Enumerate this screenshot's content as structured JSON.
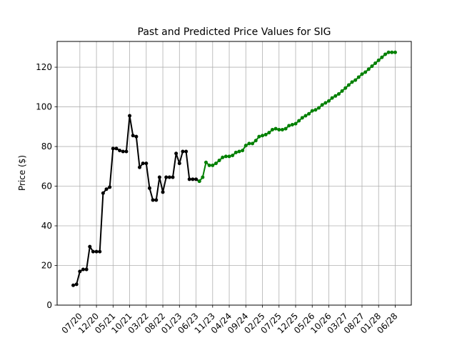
{
  "chart_data": {
    "type": "line",
    "title": "Past and Predicted Price Values for SIG",
    "xlabel": "",
    "ylabel": "Price ($)",
    "ylim": [
      0,
      133
    ],
    "grid": true,
    "x_ticks": [
      "07/20",
      "12/20",
      "05/21",
      "10/21",
      "03/22",
      "08/22",
      "01/23",
      "06/23",
      "11/23",
      "04/24",
      "09/24",
      "02/25",
      "07/25",
      "12/25",
      "05/26",
      "10/26",
      "03/27",
      "08/27",
      "01/28",
      "06/28"
    ],
    "y_ticks": [
      0,
      20,
      40,
      60,
      80,
      100,
      120
    ],
    "series": [
      {
        "color": "#000000",
        "x": [
          "05/20",
          "06/20",
          "07/20",
          "08/20",
          "09/20",
          "10/20",
          "11/20",
          "12/20",
          "01/21",
          "02/21",
          "03/21",
          "04/21",
          "05/21",
          "06/21",
          "07/21",
          "08/21",
          "09/21",
          "10/21",
          "11/21",
          "12/21",
          "01/22",
          "02/22",
          "03/22",
          "04/22",
          "05/22",
          "06/22",
          "07/22",
          "08/22",
          "09/22",
          "10/22",
          "11/22",
          "12/22",
          "01/23",
          "02/23",
          "03/23",
          "04/23",
          "05/23",
          "06/23",
          "07/23"
        ],
        "values": [
          10,
          10.5,
          17,
          18,
          18,
          29.5,
          27,
          27,
          27,
          56.5,
          58.5,
          59.5,
          79,
          79,
          78,
          77.5,
          77.5,
          95.5,
          85.5,
          85,
          69.5,
          71.5,
          71.5,
          59,
          53,
          53,
          64.5,
          57,
          64.5,
          64.5,
          64.5,
          76.5,
          71.5,
          77.5,
          77.5,
          63.5,
          63.5,
          63.5,
          62.5
        ]
      },
      {
        "color": "#008000",
        "x": [
          "07/23",
          "08/23",
          "09/23",
          "10/23",
          "11/23",
          "12/23",
          "01/24",
          "02/24",
          "03/24",
          "04/24",
          "05/24",
          "06/24",
          "07/24",
          "08/24",
          "09/24",
          "10/24",
          "11/24",
          "12/24",
          "01/25",
          "02/25",
          "03/25",
          "04/25",
          "05/25",
          "06/25",
          "07/25",
          "08/25",
          "09/25",
          "10/25",
          "11/25",
          "12/25",
          "01/26",
          "02/26",
          "03/26",
          "04/26",
          "05/26",
          "06/26",
          "07/26",
          "08/26",
          "09/26",
          "10/26",
          "11/26",
          "12/26",
          "01/27",
          "02/27",
          "03/27",
          "04/27",
          "05/27",
          "06/27",
          "07/27",
          "08/27",
          "09/27",
          "10/27",
          "11/27",
          "12/27",
          "01/28",
          "02/28",
          "03/28",
          "04/28",
          "05/28",
          "06/28"
        ],
        "values": [
          62.5,
          64.5,
          72,
          70.5,
          70.5,
          71.5,
          73,
          74.5,
          75,
          75,
          75.5,
          77,
          77.5,
          78,
          80.5,
          81.5,
          81.5,
          83,
          85,
          85.5,
          86,
          87,
          88.5,
          89,
          88.5,
          88.5,
          89,
          90.5,
          91,
          91.5,
          93,
          94.5,
          95.5,
          96.5,
          98,
          98.5,
          99.5,
          101,
          102,
          103,
          104.5,
          105.5,
          106.5,
          108,
          109.5,
          111,
          112.5,
          113.5,
          115,
          116.5,
          117.5,
          119,
          120.5,
          122,
          123.5,
          125,
          126.5,
          127.5,
          127.5,
          127.5
        ]
      }
    ]
  }
}
